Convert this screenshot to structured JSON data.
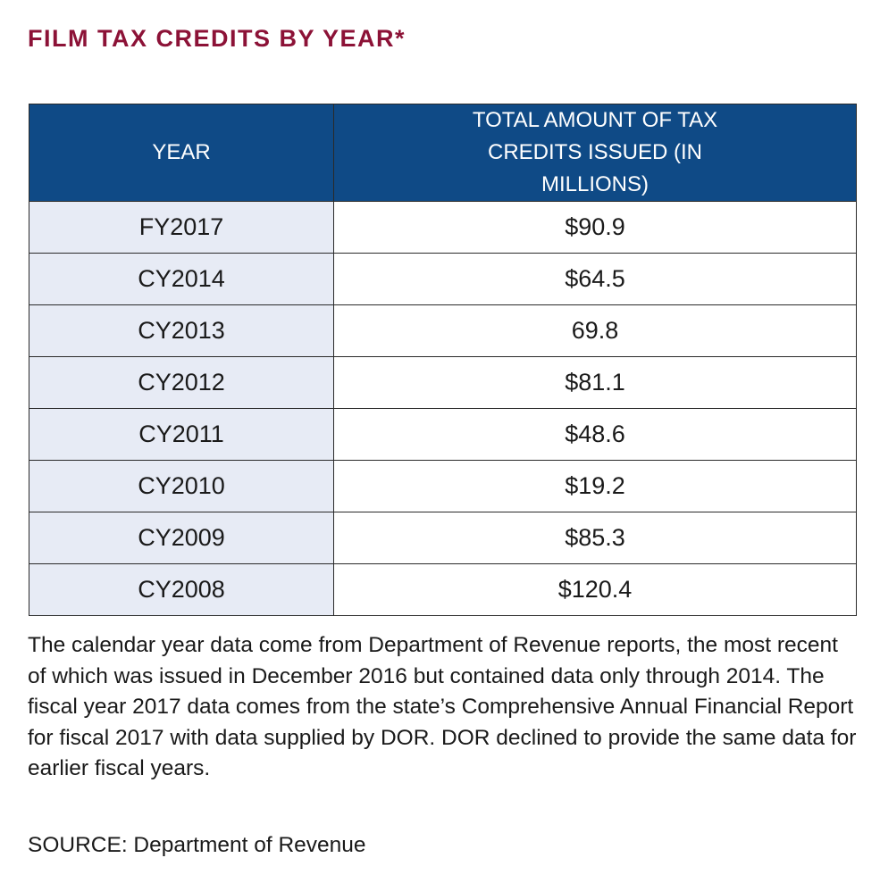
{
  "title": "FILM TAX CREDITS BY YEAR*",
  "chart_data": {
    "type": "table",
    "columns": [
      "YEAR",
      "TOTAL AMOUNT OF TAX CREDITS ISSUED (IN MILLIONS)"
    ],
    "rows": [
      {
        "year": "FY2017",
        "amount": "$90.9"
      },
      {
        "year": "CY2014",
        "amount": "$64.5"
      },
      {
        "year": "CY2013",
        "amount": "69.8"
      },
      {
        "year": "CY2012",
        "amount": "$81.1"
      },
      {
        "year": "CY2011",
        "amount": "$48.6"
      },
      {
        "year": "CY2010",
        "amount": "$19.2"
      },
      {
        "year": "CY2009",
        "amount": "$85.3"
      },
      {
        "year": "CY2008",
        "amount": "$120.4"
      }
    ]
  },
  "note": "The calendar year data come  from Department of Revenue reports, the most recent of which was issued in December 2016 but contained data only through 2014. The fiscal year 2017 data comes from the state’s Comprehensive Annual Financial Report for fiscal 2017 with data supplied by DOR. DOR declined to provide the same data for earlier fiscal years.",
  "source": "SOURCE: Department of Revenue",
  "colors": {
    "title": "#8c1237",
    "header_bg": "#0f4a86",
    "header_text": "#ffffff",
    "year_cell_bg": "#e7ebf5",
    "border": "#2a2a2a"
  }
}
